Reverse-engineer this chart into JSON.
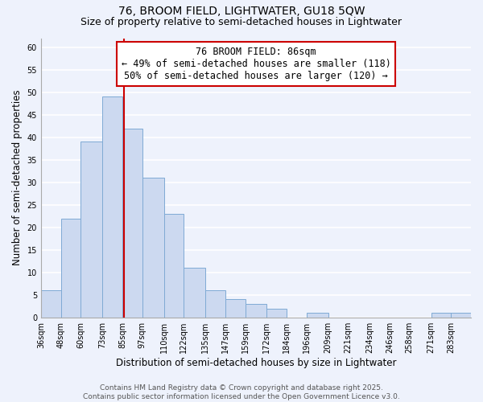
{
  "title1": "76, BROOM FIELD, LIGHTWATER, GU18 5QW",
  "title2": "Size of property relative to semi-detached houses in Lightwater",
  "xlabel": "Distribution of semi-detached houses by size in Lightwater",
  "ylabel": "Number of semi-detached properties",
  "bin_labels": [
    "36sqm",
    "48sqm",
    "60sqm",
    "73sqm",
    "85sqm",
    "97sqm",
    "110sqm",
    "122sqm",
    "135sqm",
    "147sqm",
    "159sqm",
    "172sqm",
    "184sqm",
    "196sqm",
    "209sqm",
    "221sqm",
    "234sqm",
    "246sqm",
    "258sqm",
    "271sqm",
    "283sqm"
  ],
  "bin_edges": [
    36,
    48,
    60,
    73,
    85,
    97,
    110,
    122,
    135,
    147,
    159,
    172,
    184,
    196,
    209,
    221,
    234,
    246,
    258,
    271,
    283,
    295
  ],
  "counts": [
    6,
    22,
    39,
    49,
    42,
    31,
    23,
    11,
    6,
    4,
    3,
    2,
    0,
    1,
    0,
    0,
    0,
    0,
    0,
    1,
    1
  ],
  "bar_color": "#ccd9f0",
  "bar_edge_color": "#7faad4",
  "vline_x": 86,
  "vline_color": "#cc0000",
  "annotation_text_line1": "76 BROOM FIELD: 86sqm",
  "annotation_text_line2": "← 49% of semi-detached houses are smaller (118)",
  "annotation_text_line3": "50% of semi-detached houses are larger (120) →",
  "ylim": [
    0,
    62
  ],
  "yticks": [
    0,
    5,
    10,
    15,
    20,
    25,
    30,
    35,
    40,
    45,
    50,
    55,
    60
  ],
  "footer1": "Contains HM Land Registry data © Crown copyright and database right 2025.",
  "footer2": "Contains public sector information licensed under the Open Government Licence v3.0.",
  "bg_color": "#eef2fc",
  "grid_color": "#ffffff",
  "title_fontsize": 10,
  "subtitle_fontsize": 9,
  "axis_label_fontsize": 8.5,
  "tick_fontsize": 7,
  "footer_fontsize": 6.5,
  "annot_fontsize": 8.5
}
